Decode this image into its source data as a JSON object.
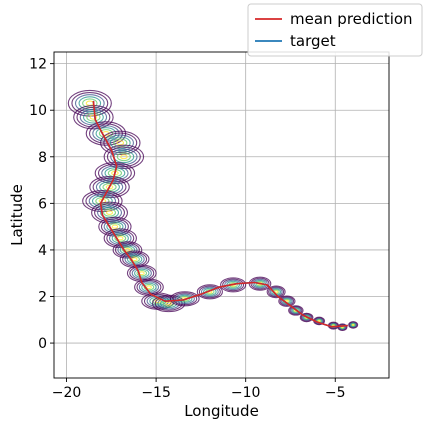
{
  "chart_data": {
    "type": "line",
    "xlabel": "Longitude",
    "ylabel": "Latitude",
    "xlim": [
      -20.7,
      -2.0
    ],
    "ylim": [
      -1.5,
      12.5
    ],
    "x_ticks": [
      -20,
      -15,
      -10,
      -5
    ],
    "x_tick_labels": [
      "−20",
      "−15",
      "−10",
      "−5"
    ],
    "y_ticks": [
      0,
      2,
      4,
      6,
      8,
      10,
      12
    ],
    "y_tick_labels": [
      "0",
      "2",
      "4",
      "6",
      "8",
      "10",
      "12"
    ],
    "grid": true,
    "legend_position": "top-right",
    "series": [
      {
        "name": "mean prediction",
        "color": "#d62728",
        "x": [
          -18.5,
          -18.4,
          -18.0,
          -17.5,
          -17.2,
          -17.4,
          -18.1,
          -18.0,
          -17.6,
          -17.2,
          -16.8,
          -16.4,
          -16.0,
          -15.8,
          -15.3,
          -14.5,
          -13.5,
          -12.5,
          -11.5,
          -10.5,
          -9.5,
          -8.8,
          -8.2,
          -7.5,
          -6.8,
          -6.0,
          -5.2,
          -4.3
        ],
        "y": [
          10.4,
          9.6,
          9.0,
          8.3,
          7.6,
          7.0,
          6.0,
          5.5,
          5.0,
          4.5,
          4.0,
          3.6,
          3.1,
          2.6,
          2.1,
          1.8,
          1.85,
          2.1,
          2.4,
          2.55,
          2.6,
          2.5,
          2.0,
          1.6,
          1.2,
          0.9,
          0.7,
          0.75
        ]
      },
      {
        "name": "target",
        "color": "#1f77b4",
        "x": [
          -18.5,
          -18.4,
          -18.0,
          -17.5,
          -17.2,
          -17.4,
          -18.1,
          -18.0,
          -17.6,
          -17.2,
          -16.8,
          -16.4,
          -16.0,
          -15.8,
          -15.3,
          -14.5,
          -13.5,
          -12.5,
          -11.5,
          -10.5,
          -9.5,
          -8.8,
          -8.2,
          -7.5,
          -6.8,
          -6.0,
          -5.2,
          -4.3
        ],
        "y": [
          10.4,
          9.6,
          9.0,
          8.3,
          7.6,
          7.0,
          6.0,
          5.5,
          5.0,
          4.5,
          4.0,
          3.6,
          3.1,
          2.6,
          2.1,
          1.8,
          1.85,
          2.1,
          2.4,
          2.55,
          2.6,
          2.5,
          2.0,
          1.6,
          1.2,
          0.9,
          0.7,
          0.75
        ]
      }
    ],
    "uncertainty_contours": {
      "colormap": [
        "#440154",
        "#3b528b",
        "#21918c",
        "#5ec962",
        "#fde725"
      ],
      "levels": 6,
      "centers": [
        {
          "x": -18.7,
          "y": 10.3,
          "sx": 1.2,
          "sy": 0.55
        },
        {
          "x": -18.5,
          "y": 9.7,
          "sx": 1.1,
          "sy": 0.5
        },
        {
          "x": -17.8,
          "y": 9.0,
          "sx": 1.1,
          "sy": 0.5
        },
        {
          "x": -17.0,
          "y": 8.6,
          "sx": 1.1,
          "sy": 0.5
        },
        {
          "x": -16.8,
          "y": 8.0,
          "sx": 1.1,
          "sy": 0.5
        },
        {
          "x": -17.3,
          "y": 7.3,
          "sx": 1.1,
          "sy": 0.45
        },
        {
          "x": -17.6,
          "y": 6.7,
          "sx": 1.1,
          "sy": 0.45
        },
        {
          "x": -18.0,
          "y": 6.1,
          "sx": 1.1,
          "sy": 0.45
        },
        {
          "x": -17.6,
          "y": 5.6,
          "sx": 1.0,
          "sy": 0.45
        },
        {
          "x": -17.3,
          "y": 5.0,
          "sx": 0.9,
          "sy": 0.4
        },
        {
          "x": -17.0,
          "y": 4.5,
          "sx": 0.9,
          "sy": 0.4
        },
        {
          "x": -16.6,
          "y": 4.0,
          "sx": 0.8,
          "sy": 0.35
        },
        {
          "x": -16.2,
          "y": 3.6,
          "sx": 0.8,
          "sy": 0.35
        },
        {
          "x": -15.8,
          "y": 3.0,
          "sx": 0.8,
          "sy": 0.35
        },
        {
          "x": -15.4,
          "y": 2.4,
          "sx": 0.8,
          "sy": 0.35
        },
        {
          "x": -14.9,
          "y": 1.8,
          "sx": 0.9,
          "sy": 0.35
        },
        {
          "x": -14.3,
          "y": 1.7,
          "sx": 0.9,
          "sy": 0.35
        },
        {
          "x": -13.4,
          "y": 1.9,
          "sx": 0.8,
          "sy": 0.3
        },
        {
          "x": -12.0,
          "y": 2.2,
          "sx": 0.7,
          "sy": 0.3
        },
        {
          "x": -10.7,
          "y": 2.5,
          "sx": 0.7,
          "sy": 0.3
        },
        {
          "x": -9.2,
          "y": 2.55,
          "sx": 0.6,
          "sy": 0.28
        },
        {
          "x": -8.3,
          "y": 2.2,
          "sx": 0.5,
          "sy": 0.25
        },
        {
          "x": -7.7,
          "y": 1.8,
          "sx": 0.45,
          "sy": 0.22
        },
        {
          "x": -7.2,
          "y": 1.4,
          "sx": 0.4,
          "sy": 0.2
        },
        {
          "x": -6.6,
          "y": 1.1,
          "sx": 0.35,
          "sy": 0.18
        },
        {
          "x": -5.9,
          "y": 0.95,
          "sx": 0.3,
          "sy": 0.16
        },
        {
          "x": -5.1,
          "y": 0.75,
          "sx": 0.28,
          "sy": 0.15
        },
        {
          "x": -4.6,
          "y": 0.68,
          "sx": 0.25,
          "sy": 0.14
        },
        {
          "x": -4.0,
          "y": 0.78,
          "sx": 0.25,
          "sy": 0.14
        }
      ]
    }
  }
}
